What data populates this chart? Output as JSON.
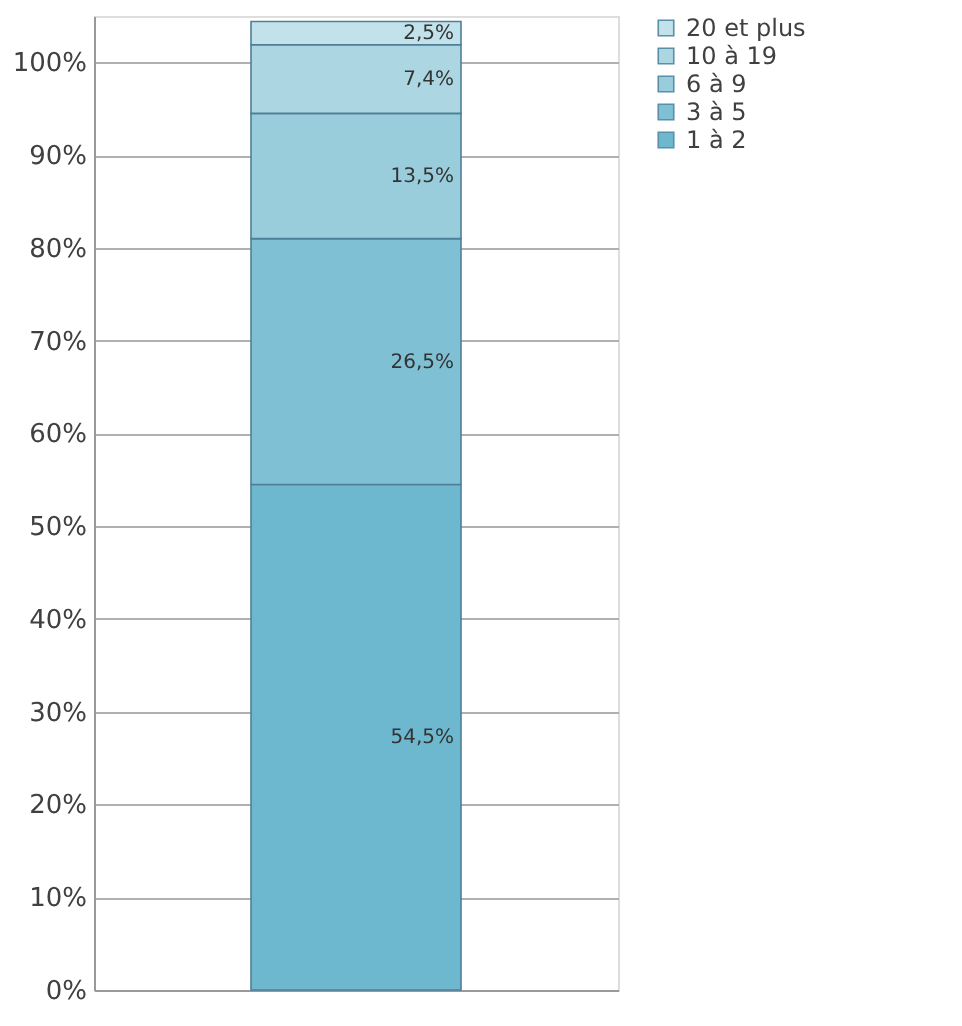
{
  "chart_data": {
    "type": "bar",
    "stacked": true,
    "categories": [
      null
    ],
    "series": [
      {
        "name": "1 à 2",
        "color": "#6eb8cf",
        "values": [
          54.5
        ],
        "value_labels": [
          "54,5%"
        ]
      },
      {
        "name": "3 à 5",
        "color": "#80c0d4",
        "values": [
          26.5
        ],
        "value_labels": [
          "26,5%"
        ]
      },
      {
        "name": "6 à 9",
        "color": "#99cddb",
        "values": [
          13.5
        ],
        "value_labels": [
          "13,5%"
        ]
      },
      {
        "name": "10 à 19",
        "color": "#acd6e2",
        "values": [
          7.4
        ],
        "value_labels": [
          "7,4%"
        ]
      },
      {
        "name": "20 et plus",
        "color": "#c1e2ea",
        "values": [
          2.5
        ],
        "value_labels": [
          "2,5%"
        ]
      }
    ],
    "ylim": [
      0,
      105
    ],
    "yticks": [
      {
        "value": 0,
        "label": "0%"
      },
      {
        "value": 10,
        "label": "10%"
      },
      {
        "value": 20,
        "label": "20%"
      },
      {
        "value": 30,
        "label": "30%"
      },
      {
        "value": 40,
        "label": "40%"
      },
      {
        "value": 50,
        "label": "50%"
      },
      {
        "value": 60,
        "label": "60%"
      },
      {
        "value": 70,
        "label": "70%"
      },
      {
        "value": 80,
        "label": "80%"
      },
      {
        "value": 90,
        "label": "90%"
      },
      {
        "value": 100,
        "label": "100%"
      }
    ],
    "grid": "y",
    "legend": "right"
  }
}
